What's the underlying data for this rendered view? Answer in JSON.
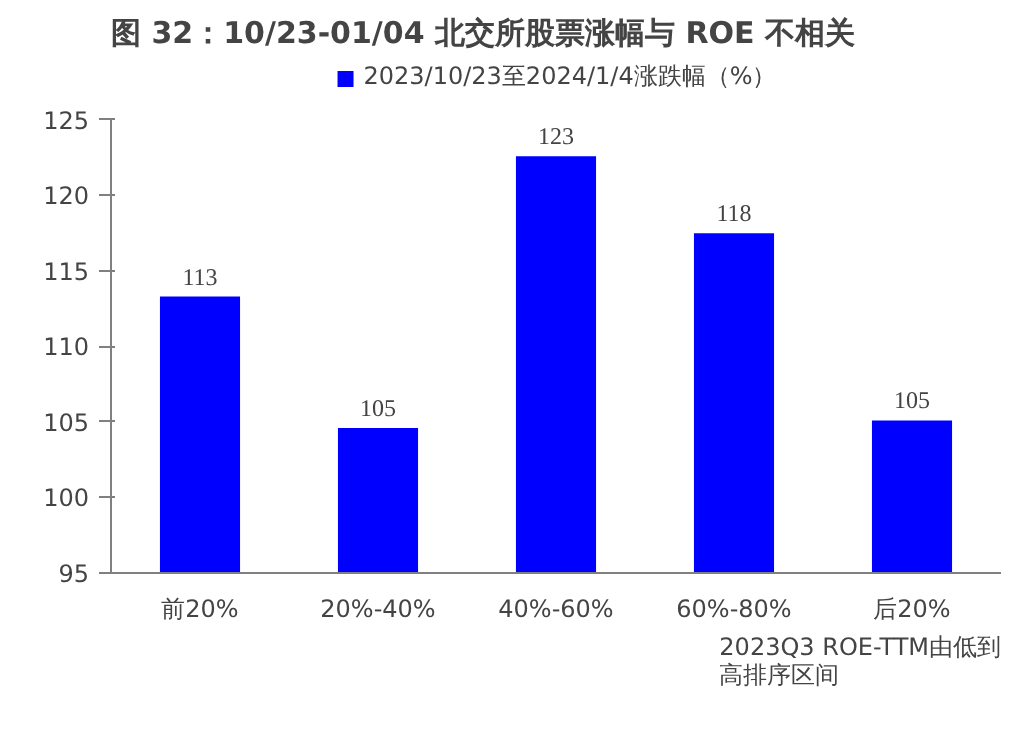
{
  "chart_data": {
    "type": "bar",
    "title": "图 32：10/23-01/04 北交所股票涨幅与 ROE 不相关",
    "xlabel": "2023Q3 ROE-TTM由低到高排序区间",
    "categories": [
      "前20%",
      "20%-40%",
      "40%-60%",
      "60%-80%",
      "后20%"
    ],
    "series": [
      {
        "name": "2023/10/23至2024/1/4涨跌幅（%）",
        "color": "#0000ff",
        "values": [
          113.3,
          104.6,
          122.6,
          117.5,
          105.1
        ],
        "value_labels": [
          "113",
          "105",
          "123",
          "118",
          "105"
        ]
      }
    ],
    "ylim": [
      95,
      125
    ],
    "yticks": [
      95,
      100,
      105,
      110,
      115,
      120,
      125
    ],
    "grid": false,
    "legend": "top"
  }
}
